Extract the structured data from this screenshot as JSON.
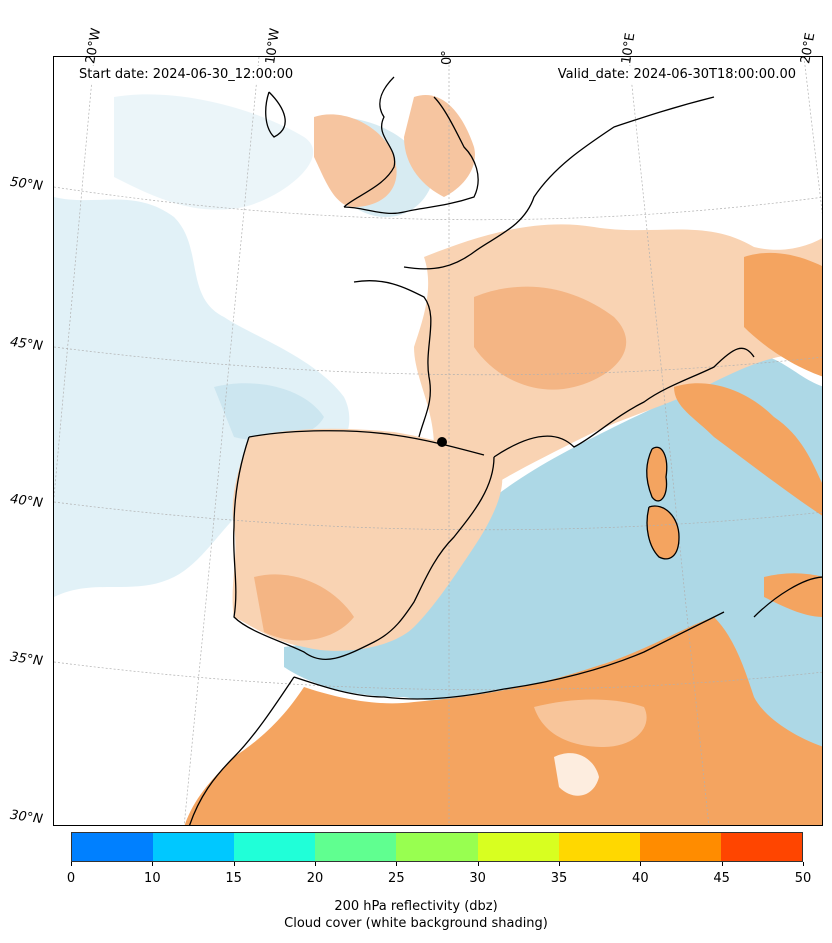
{
  "header": {
    "start_date": "Start date: 2024-06-30_12:00:00",
    "valid_date": "Valid_date: 2024-06-30T18:00:00.00"
  },
  "map": {
    "longitude_labels": [
      "20°W",
      "10°W",
      "0°",
      "10°E",
      "20°E"
    ],
    "latitude_labels": [
      "50°N",
      "45°N",
      "40°N",
      "35°N",
      "30°N"
    ],
    "colors": {
      "reflectivity_shading": "#f4a460",
      "light_shading": "#f9d3b3",
      "cloud_blue": "#add8e6",
      "cloud_light": "#d9eef5",
      "coastline": "#000000",
      "gridline": "#b0b0b0"
    }
  },
  "colorbar": {
    "colors": [
      "#0080ff",
      "#00c8ff",
      "#20ffd8",
      "#60ff90",
      "#98ff50",
      "#d8ff20",
      "#ffd800",
      "#ff8c00",
      "#ff4500"
    ],
    "ticks": [
      "0",
      "10",
      "15",
      "20",
      "25",
      "30",
      "35",
      "40",
      "45",
      "50"
    ],
    "label_line1": "200 hPa reflectivity (dbz)",
    "label_line2": "Cloud cover (white background shading)"
  }
}
